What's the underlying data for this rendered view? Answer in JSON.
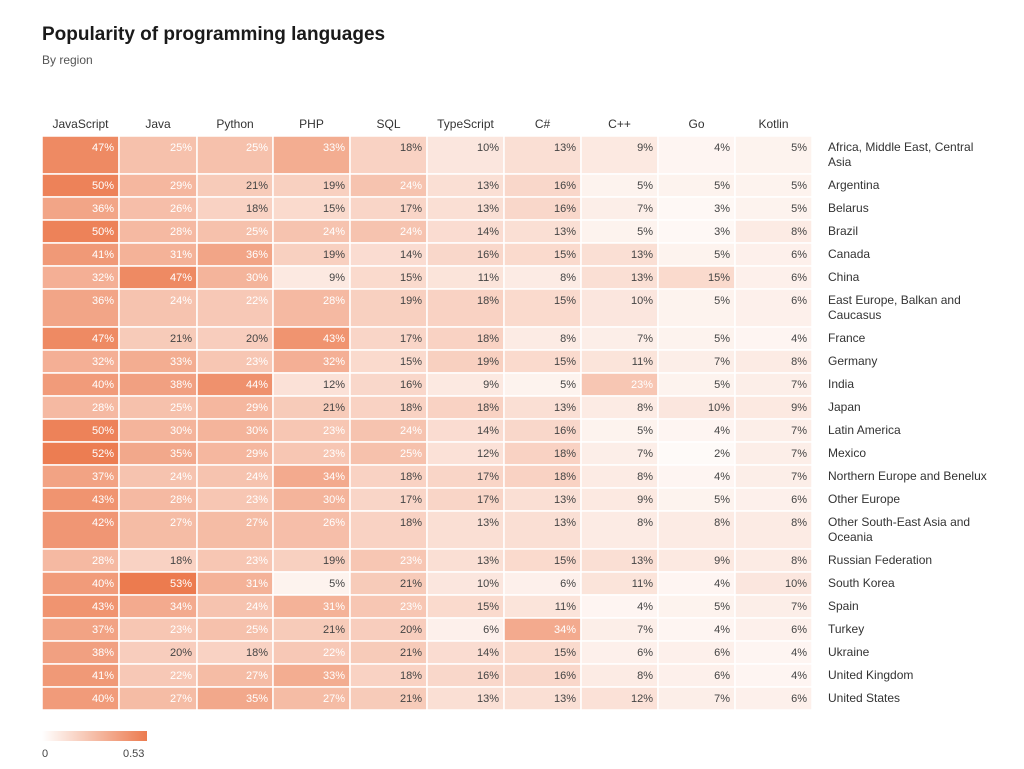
{
  "title": "Popularity of programming languages",
  "subtitle": "By region",
  "legend": {
    "min_label": "0",
    "max_label": "0.53"
  },
  "colors": {
    "low": "#ffffff",
    "high": "#ec7b4f",
    "grid": "#ffffff",
    "text_on_dark": "#ffffff",
    "text_on_light": "#444444"
  },
  "chart_data": {
    "type": "heatmap",
    "title": "Popularity of programming languages",
    "subtitle": "By region",
    "value_range": [
      0,
      0.53
    ],
    "columns": [
      "JavaScript",
      "Java",
      "Python",
      "PHP",
      "SQL",
      "TypeScript",
      "C#",
      "C++",
      "Go",
      "Kotlin"
    ],
    "rows": [
      {
        "label": "Africa, Middle East, Central Asia",
        "values": [
          47,
          25,
          25,
          33,
          18,
          10,
          13,
          9,
          4,
          5
        ]
      },
      {
        "label": "Argentina",
        "values": [
          50,
          29,
          21,
          19,
          24,
          13,
          16,
          5,
          5,
          5
        ]
      },
      {
        "label": "Belarus",
        "values": [
          36,
          26,
          18,
          15,
          17,
          13,
          16,
          7,
          3,
          5
        ]
      },
      {
        "label": "Brazil",
        "values": [
          50,
          28,
          25,
          24,
          24,
          14,
          13,
          5,
          3,
          8
        ]
      },
      {
        "label": "Canada",
        "values": [
          41,
          31,
          36,
          19,
          14,
          16,
          15,
          13,
          5,
          6
        ]
      },
      {
        "label": "China",
        "values": [
          32,
          47,
          30,
          9,
          15,
          11,
          8,
          13,
          15,
          6
        ]
      },
      {
        "label": "East Europe, Balkan and Caucasus",
        "values": [
          36,
          24,
          22,
          28,
          19,
          18,
          15,
          10,
          5,
          6
        ]
      },
      {
        "label": "France",
        "values": [
          47,
          21,
          20,
          43,
          17,
          18,
          8,
          7,
          5,
          4
        ]
      },
      {
        "label": "Germany",
        "values": [
          32,
          33,
          23,
          32,
          15,
          19,
          15,
          11,
          7,
          8
        ]
      },
      {
        "label": "India",
        "values": [
          40,
          38,
          44,
          12,
          16,
          9,
          5,
          23,
          5,
          7
        ]
      },
      {
        "label": "Japan",
        "values": [
          28,
          25,
          29,
          21,
          18,
          18,
          13,
          8,
          10,
          9
        ]
      },
      {
        "label": "Latin America",
        "values": [
          50,
          30,
          30,
          23,
          24,
          14,
          16,
          5,
          4,
          7
        ]
      },
      {
        "label": "Mexico",
        "values": [
          52,
          35,
          29,
          23,
          25,
          12,
          18,
          7,
          2,
          7
        ]
      },
      {
        "label": "Northern Europe and Benelux",
        "values": [
          37,
          24,
          24,
          34,
          18,
          17,
          18,
          8,
          4,
          7
        ]
      },
      {
        "label": "Other Europe",
        "values": [
          43,
          28,
          23,
          30,
          17,
          17,
          13,
          9,
          5,
          6
        ]
      },
      {
        "label": "Other South-East Asia and Oceania",
        "values": [
          42,
          27,
          27,
          26,
          18,
          13,
          13,
          8,
          8,
          8
        ]
      },
      {
        "label": "Russian Federation",
        "values": [
          28,
          18,
          23,
          19,
          23,
          13,
          15,
          13,
          9,
          8
        ]
      },
      {
        "label": "South Korea",
        "values": [
          40,
          53,
          31,
          5,
          21,
          10,
          6,
          11,
          4,
          10
        ]
      },
      {
        "label": "Spain",
        "values": [
          43,
          34,
          24,
          31,
          23,
          15,
          11,
          4,
          5,
          7
        ]
      },
      {
        "label": "Turkey",
        "values": [
          37,
          23,
          25,
          21,
          20,
          6,
          34,
          7,
          4,
          6
        ]
      },
      {
        "label": "Ukraine",
        "values": [
          38,
          20,
          18,
          22,
          21,
          14,
          15,
          6,
          6,
          4
        ]
      },
      {
        "label": "United Kingdom",
        "values": [
          41,
          22,
          27,
          33,
          18,
          16,
          16,
          8,
          6,
          4
        ]
      },
      {
        "label": "United States",
        "values": [
          40,
          27,
          35,
          27,
          21,
          13,
          13,
          12,
          7,
          6
        ]
      }
    ],
    "value_suffix": "%",
    "legend": "bottom-left"
  }
}
